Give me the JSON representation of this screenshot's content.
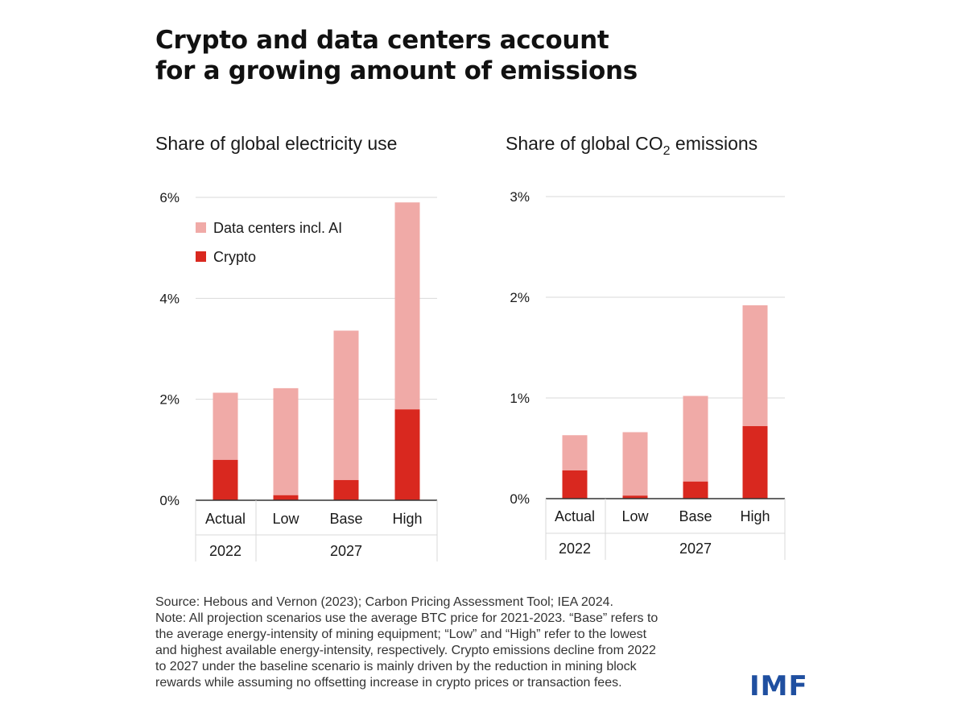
{
  "title_lines": [
    "Crypto and data centers account",
    "for a growing amount of emissions"
  ],
  "colors": {
    "data_centers": "#f0aaa7",
    "crypto": "#d9281f",
    "grid": "#d9d9d9",
    "logo": "#1f4fa0"
  },
  "chart_data": [
    {
      "type": "bar",
      "stacked": true,
      "title": "Share of global electricity use",
      "categories": [
        "Actual",
        "Low",
        "Base",
        "High"
      ],
      "year_groups": [
        {
          "label": "2022",
          "span": 1
        },
        {
          "label": "2027",
          "span": 3
        }
      ],
      "series": [
        {
          "name": "Crypto",
          "values": [
            0.8,
            0.1,
            0.4,
            1.8
          ]
        },
        {
          "name": "Data centers incl. AI",
          "values": [
            1.33,
            2.12,
            2.96,
            4.1
          ]
        }
      ],
      "ylim": [
        0,
        6
      ],
      "yticks": [
        0,
        2,
        4,
        6
      ],
      "ytick_labels": [
        "0%",
        "2%",
        "4%",
        "6%"
      ],
      "legend": [
        "Data centers incl. AI",
        "Crypto"
      ],
      "legend_position": "top-left"
    },
    {
      "type": "bar",
      "stacked": true,
      "title": "Share of global CO",
      "title_subscript": "2",
      "title_suffix": " emissions",
      "categories": [
        "Actual",
        "Low",
        "Base",
        "High"
      ],
      "year_groups": [
        {
          "label": "2022",
          "span": 1
        },
        {
          "label": "2027",
          "span": 3
        }
      ],
      "series": [
        {
          "name": "Crypto",
          "values": [
            0.28,
            0.03,
            0.17,
            0.72
          ]
        },
        {
          "name": "Data centers incl. AI",
          "values": [
            0.35,
            0.63,
            0.85,
            1.2
          ]
        }
      ],
      "ylim": [
        0,
        3
      ],
      "yticks": [
        0,
        1,
        2,
        3
      ],
      "ytick_labels": [
        "0%",
        "1%",
        "2%",
        "3%"
      ]
    }
  ],
  "notes": [
    "Source: Hebous and Vernon (2023); Carbon Pricing Assessment Tool; IEA 2024.",
    "Note: All projection scenarios use the average BTC price for 2021-2023. “Base” refers to",
    "the average energy-intensity of mining equipment; “Low” and “High” refer to the lowest",
    "and highest available energy-intensity, respectively. Crypto emissions decline from 2022",
    "to 2027 under the baseline scenario is mainly driven by the reduction in mining block",
    "rewards while assuming no offsetting increase in crypto prices or transaction fees."
  ],
  "logo_text": "IMF"
}
